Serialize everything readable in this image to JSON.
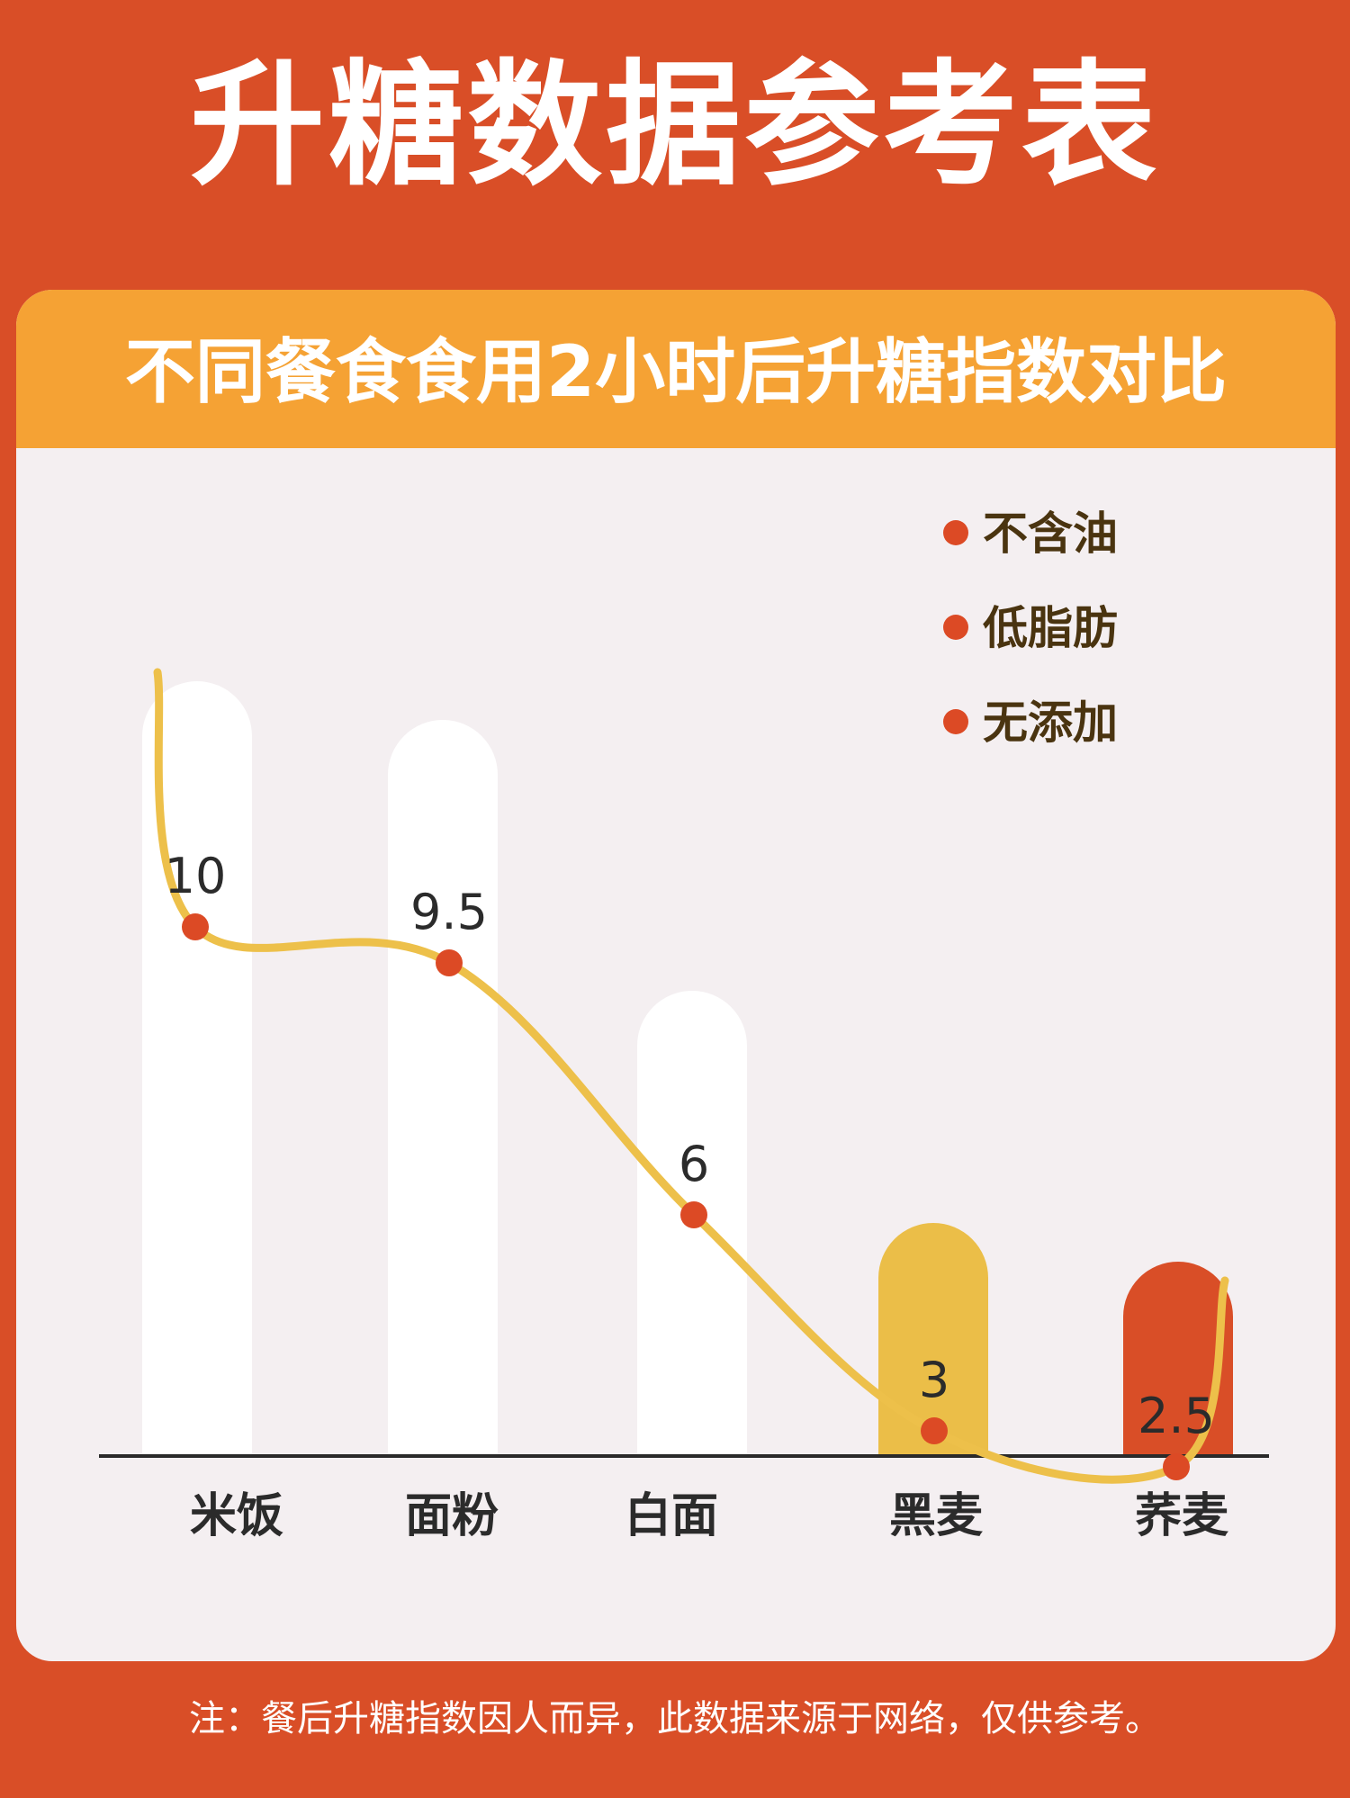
{
  "title": "升糖数据参考表",
  "subtitle": "不同餐食食用2小时后升糖指数对比",
  "legend": [
    "不含油",
    "低脂肪",
    "无添加"
  ],
  "footnote": "注：餐后升糖指数因人而异，此数据来源于网络，仅供参考。",
  "colors": {
    "background": "#d94e27",
    "header": "#f5a234",
    "card": "#f4eff1",
    "bar_default": "#ffffff",
    "bar_highlight_yellow": "#ebbe48",
    "bar_highlight_red": "#d94e27",
    "line": "#edc04a",
    "point": "#dc4a25",
    "label_text": "#2b2b2b",
    "legend_text": "#4a3410"
  },
  "chart_data": {
    "type": "bar",
    "categories": [
      "米饭",
      "面粉",
      "白面",
      "黑麦",
      "荞麦"
    ],
    "values": [
      10,
      9.5,
      6,
      3,
      2.5
    ],
    "value_labels": [
      "10",
      "9.5",
      "6",
      "3",
      "2.5"
    ],
    "overlay": "line",
    "ylim": [
      0,
      10
    ],
    "grid": false,
    "legend_position": "top-right",
    "bar_colors": [
      "#ffffff",
      "#ffffff",
      "#ffffff",
      "#ebbe48",
      "#d94e27"
    ]
  }
}
